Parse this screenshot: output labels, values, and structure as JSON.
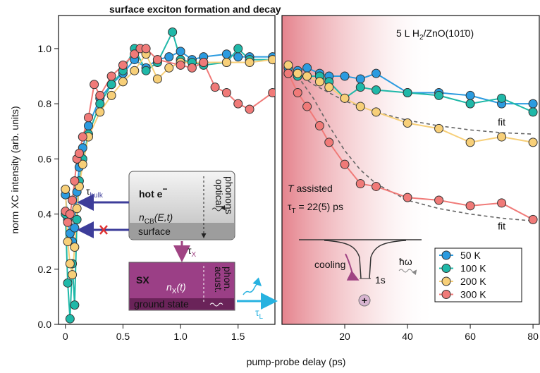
{
  "chart_data": [
    {
      "type": "line",
      "title": "surface exciton formation  and decay",
      "xlabel": "pump-probe delay (ps)",
      "ylabel": "norm XC intensity (arb. units)",
      "xlim": [
        -0.06,
        1.82
      ],
      "ylim": [
        0,
        1.12
      ],
      "xticks": [
        0,
        0.5,
        {
          "value": 1,
          "label": "1.0"
        },
        1.5
      ],
      "yticks": [
        {
          "value": 0,
          "label": "0.0"
        },
        0.2,
        0.4,
        0.6,
        0.8,
        {
          "value": 1,
          "label": "1.0"
        }
      ],
      "series": [
        {
          "name": "50 K",
          "color": "#2b9be0",
          "x": [
            0,
            0.02,
            0.04,
            0.06,
            0.08,
            0.1,
            0.12,
            0.15,
            0.2,
            0.3,
            0.4,
            0.5,
            0.6,
            0.7,
            0.8,
            0.9,
            1.0,
            1.1,
            1.2,
            1.4,
            1.5,
            1.6,
            1.8
          ],
          "values": [
            0.47,
            0.38,
            0.33,
            0.3,
            0.35,
            0.48,
            0.57,
            0.64,
            0.72,
            0.82,
            0.87,
            0.91,
            0.96,
            0.93,
            0.96,
            0.97,
            0.99,
            0.96,
            0.97,
            0.98,
            0.97,
            0.97,
            0.97
          ]
        },
        {
          "name": "100 K",
          "color": "#1fb8a8",
          "x": [
            0,
            0.02,
            0.04,
            0.06,
            0.08,
            0.1,
            0.12,
            0.15,
            0.2,
            0.3,
            0.4,
            0.5,
            0.6,
            0.7,
            0.8,
            0.93,
            1.0,
            1.1,
            1.2,
            1.4,
            1.5,
            1.6,
            1.8
          ],
          "values": [
            0.4,
            0.15,
            0.02,
            0.22,
            0.07,
            0.38,
            0.52,
            0.6,
            0.69,
            0.8,
            0.87,
            0.92,
            1.0,
            0.92,
            0.95,
            1.06,
            0.96,
            0.95,
            0.94,
            0.95,
            1.0,
            0.96,
            0.96
          ]
        },
        {
          "name": "200 K",
          "color": "#f7cf78",
          "x": [
            0,
            0.02,
            0.04,
            0.06,
            0.08,
            0.1,
            0.12,
            0.15,
            0.2,
            0.3,
            0.4,
            0.5,
            0.6,
            0.7,
            0.8,
            0.9,
            1.0,
            1.2,
            1.4,
            1.6,
            1.8
          ],
          "values": [
            0.49,
            0.3,
            0.22,
            0.18,
            0.28,
            0.42,
            0.5,
            0.58,
            0.68,
            0.77,
            0.83,
            0.88,
            0.92,
            0.98,
            0.89,
            0.93,
            0.95,
            0.95,
            0.95,
            0.95,
            0.96
          ]
        },
        {
          "name": "300 K",
          "color": "#f07a78",
          "x": [
            0,
            0.02,
            0.04,
            0.06,
            0.08,
            0.1,
            0.12,
            0.15,
            0.2,
            0.25,
            0.3,
            0.4,
            0.5,
            0.6,
            0.65,
            0.7,
            0.8,
            1.0,
            1.1,
            1.2,
            1.3,
            1.4,
            1.5,
            1.6,
            1.8
          ],
          "values": [
            0.41,
            0.37,
            0.4,
            0.45,
            0.52,
            0.6,
            0.62,
            0.68,
            0.75,
            0.87,
            0.83,
            0.9,
            0.94,
            0.98,
            1.0,
            1.0,
            0.96,
            0.94,
            0.93,
            0.95,
            0.86,
            0.84,
            0.8,
            0.78,
            0.84
          ]
        }
      ],
      "annotations": {
        "hot": "hot e",
        "hot_sup": "−",
        "n": "n",
        "n_sub": "CB",
        "n_args": "(E,t)",
        "optical": "optical",
        "phonons": "phonons",
        "surface": "surface",
        "sx": "SX",
        "nx": "n",
        "nx_sub": "X",
        "nx_args": "(t)",
        "acust": "acust.",
        "phon": "phon.",
        "ground": "ground state",
        "tau_bulk": "τ",
        "tau_bulk_sub": "bulk",
        "tau_x": "τ",
        "tau_x_sub": "X",
        "tau_l": "τ",
        "tau_l_sub": "L"
      }
    },
    {
      "type": "line",
      "xlim": [
        0,
        82
      ],
      "ylim": [
        0,
        1.12
      ],
      "xticks": [
        20,
        40,
        60,
        80
      ],
      "legend": "lower right",
      "series": [
        {
          "name": "50 K",
          "color": "#2b9be0",
          "x": [
            2,
            5,
            8,
            12,
            15,
            20,
            25,
            30,
            40,
            50,
            60,
            70,
            80
          ],
          "values": [
            0.93,
            0.92,
            0.93,
            0.91,
            0.9,
            0.9,
            0.89,
            0.91,
            0.84,
            0.84,
            0.83,
            0.8,
            0.8
          ]
        },
        {
          "name": "100 K",
          "color": "#1fb8a8",
          "x": [
            2,
            5,
            8,
            12,
            15,
            20,
            25,
            30,
            40,
            50,
            60,
            70,
            80
          ],
          "values": [
            0.91,
            0.9,
            0.9,
            0.9,
            0.88,
            0.82,
            0.86,
            0.85,
            0.84,
            0.83,
            0.8,
            0.82,
            0.77
          ]
        },
        {
          "name": "200 K",
          "color": "#f7cf78",
          "x": [
            2,
            5,
            8,
            12,
            15,
            20,
            25,
            30,
            40,
            50,
            60,
            70,
            80
          ],
          "values": [
            0.94,
            0.91,
            0.9,
            0.88,
            0.86,
            0.82,
            0.79,
            0.77,
            0.73,
            0.71,
            0.66,
            0.68,
            0.66
          ]
        },
        {
          "name": "300 K",
          "color": "#f07a78",
          "x": [
            2,
            5,
            8,
            12,
            15,
            20,
            25,
            30,
            40,
            50,
            60,
            70,
            80
          ],
          "values": [
            0.91,
            0.84,
            0.79,
            0.72,
            0.66,
            0.58,
            0.51,
            0.5,
            0.46,
            0.45,
            0.43,
            0.44,
            0.38
          ]
        }
      ],
      "fits": [
        {
          "label": "fit",
          "x": [
            5,
            10,
            20,
            30,
            40,
            50,
            60,
            70,
            80
          ],
          "values": [
            0.91,
            0.87,
            0.81,
            0.77,
            0.74,
            0.72,
            0.705,
            0.695,
            0.69
          ]
        },
        {
          "label": "fit",
          "x": [
            5,
            10,
            15,
            20,
            25,
            30,
            40,
            50,
            60,
            70,
            80
          ],
          "values": [
            0.9,
            0.82,
            0.72,
            0.63,
            0.56,
            0.51,
            0.45,
            0.42,
            0.4,
            0.385,
            0.375
          ]
        }
      ],
      "annotations": {
        "material": "5 L H",
        "material_sub": "2",
        "material_rest": "/ZnO(101̄0)",
        "t_var": "T",
        "t_assisted": " assisted",
        "tau": "τ",
        "tau_sub": "T",
        "tau_value": " = 22(5) ps",
        "cooling": "cooling",
        "state": "1s",
        "hbar": "ħω",
        "hole": "+"
      }
    }
  ]
}
